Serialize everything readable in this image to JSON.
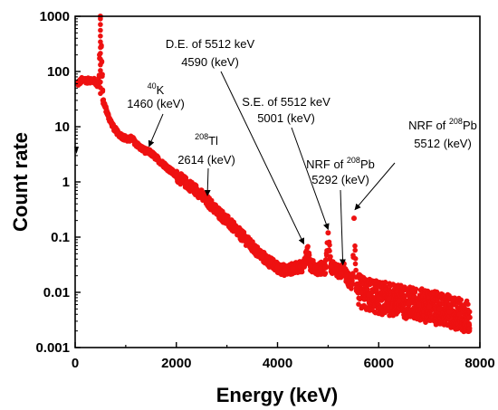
{
  "chart_data": {
    "type": "scatter",
    "xlabel": "Energy (keV)",
    "ylabel": "Count rate",
    "xlim": [
      0,
      8000
    ],
    "ylim": [
      0.001,
      1000
    ],
    "yscale": "log",
    "grid": false,
    "color": "#ee1111",
    "x_ticks": [
      0,
      2000,
      4000,
      6000,
      8000
    ],
    "y_ticks": [
      {
        "value": 1000,
        "label": "1000"
      },
      {
        "value": 100,
        "label": "100"
      },
      {
        "value": 10,
        "label": "10"
      },
      {
        "value": 1,
        "label": "1"
      },
      {
        "value": 0.1,
        "label": "0.1"
      },
      {
        "value": 0.01,
        "label": "0.01"
      },
      {
        "value": 0.001,
        "label": "0.001"
      }
    ],
    "series": [
      {
        "x": [
          50,
          150,
          250,
          330,
          400,
          430,
          470,
          500,
          550,
          650,
          750,
          850,
          950,
          1050,
          1120,
          1200,
          1300,
          1400,
          1460,
          1520,
          1650,
          1800,
          2000,
          2200,
          2400,
          2614,
          2800,
          3000,
          3200,
          3400,
          3550,
          3700,
          3850,
          4000,
          4150,
          4300,
          4450,
          4520,
          4590,
          4650,
          4750,
          4850,
          4950,
          5001,
          5050,
          5150,
          5250,
          5292,
          5350,
          5420,
          5480,
          5512,
          5560,
          5650,
          5800,
          6000,
          6200,
          6400,
          6600,
          6800,
          7000,
          7200,
          7400,
          7600,
          7800
        ],
        "y": [
          60,
          72,
          68,
          70,
          66,
          58,
          62,
          1000,
          30,
          16,
          10,
          7.5,
          6.5,
          5.8,
          6.2,
          5.0,
          4.1,
          3.6,
          3.5,
          3.2,
          2.5,
          1.9,
          1.3,
          0.95,
          0.7,
          0.45,
          0.3,
          0.2,
          0.13,
          0.085,
          0.06,
          0.045,
          0.035,
          0.028,
          0.025,
          0.027,
          0.029,
          0.03,
          0.065,
          0.03,
          0.028,
          0.027,
          0.028,
          0.12,
          0.03,
          0.026,
          0.022,
          0.03,
          0.02,
          0.016,
          0.014,
          0.22,
          0.012,
          0.01,
          0.009,
          0.008,
          0.0075,
          0.007,
          0.0065,
          0.006,
          0.0055,
          0.005,
          0.0045,
          0.004,
          0.0035
        ]
      }
    ],
    "annotations": [
      {
        "lines": [
          "40K",
          "1460 (keV)"
        ],
        "line1_sup": "40",
        "line1_base": "K",
        "line2": "1460 (keV)",
        "arrow_to": [
          1460,
          3.5
        ]
      },
      {
        "lines": [
          "208Tl",
          "2614 (keV)"
        ],
        "line1_sup": "208",
        "line1_base": "Tl",
        "line2": "2614 (keV)",
        "arrow_to": [
          2614,
          0.45
        ]
      },
      {
        "lines": [
          "D.E. of 5512 keV",
          "4590 (keV)"
        ],
        "line1_pre": "D.E. of 5512 keV",
        "line2": "4590 (keV)",
        "arrow_to": [
          4520,
          0.06
        ]
      },
      {
        "lines": [
          "S.E. of 5512 keV",
          "5001 (keV)"
        ],
        "line1_pre": "S.E. of 5512 keV",
        "line2": "5001 (keV)",
        "arrow_to": [
          5001,
          0.11
        ]
      },
      {
        "lines": [
          "NRF of 208Pb",
          "5292 (keV)"
        ],
        "line1_pre": "NRF of ",
        "line1_sup": "208",
        "line1_base": "Pb",
        "line2": "5292 (keV)",
        "arrow_to": [
          5292,
          0.025
        ]
      },
      {
        "lines": [
          "NRF of 208Pb",
          "5512 (keV)"
        ],
        "line1_pre": "NRF of ",
        "line1_sup": "208",
        "line1_base": "Pb",
        "line2": "5512 (keV)",
        "arrow_to": [
          5530,
          0.25
        ]
      }
    ]
  }
}
